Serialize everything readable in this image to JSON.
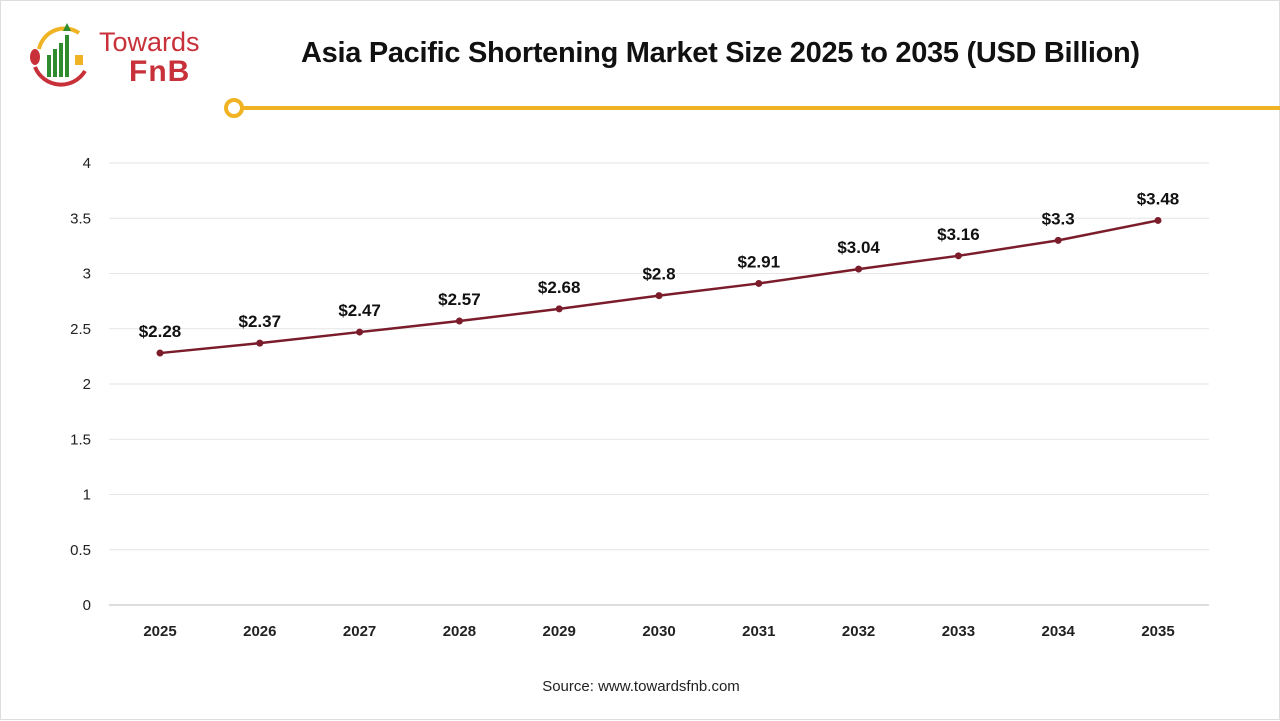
{
  "header": {
    "title": "Asia Pacific Shortening Market Size 2025 to 2035 (USD Billion)",
    "brand_line1": "Towards",
    "brand_line2": "FnB"
  },
  "colors": {
    "line": "#7b1c2b",
    "accent": "#f0b323",
    "brand": "#c8313a",
    "grid": "#e6e6e6"
  },
  "chart_data": {
    "type": "line",
    "title": "Asia Pacific Shortening Market Size 2025 to 2035 (USD Billion)",
    "categories": [
      "2025",
      "2026",
      "2027",
      "2028",
      "2029",
      "2030",
      "2031",
      "2032",
      "2033",
      "2034",
      "2035"
    ],
    "values": [
      2.28,
      2.37,
      2.47,
      2.57,
      2.68,
      2.8,
      2.91,
      3.04,
      3.16,
      3.3,
      3.48
    ],
    "data_labels": [
      "$2.28",
      "$2.37",
      "$2.47",
      "$2.57",
      "$2.68",
      "$2.8",
      "$2.91",
      "$3.04",
      "$3.16",
      "$3.3",
      "$3.48"
    ],
    "yticks": [
      "0",
      "0.5",
      "1",
      "1.5",
      "2",
      "2.5",
      "3",
      "3.5",
      "4"
    ],
    "ylim": [
      0,
      4
    ],
    "grid": true,
    "legend": "none"
  },
  "footer": {
    "source": "Source: www.towardsfnb.com"
  }
}
